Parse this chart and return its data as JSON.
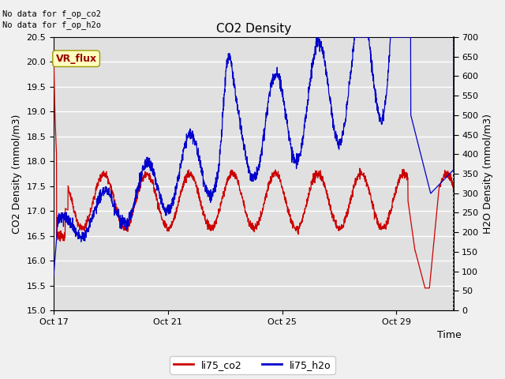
{
  "title": "CO2 Density",
  "xlabel": "Time",
  "ylabel_left": "CO2 Density (mmol/m3)",
  "ylabel_right": "H2O Density (mmol/m3)",
  "ylim_left": [
    15.0,
    20.5
  ],
  "ylim_right": [
    0,
    700
  ],
  "yticks_left": [
    15.0,
    15.5,
    16.0,
    16.5,
    17.0,
    17.5,
    18.0,
    18.5,
    19.0,
    19.5,
    20.0,
    20.5
  ],
  "yticks_right": [
    0,
    50,
    100,
    150,
    200,
    250,
    300,
    350,
    400,
    450,
    500,
    550,
    600,
    650,
    700
  ],
  "xtick_labels": [
    "Oct 17",
    "Oct 21",
    "Oct 25",
    "Oct 29"
  ],
  "xtick_positions": [
    0,
    4,
    8,
    12
  ],
  "xlim": [
    0,
    14
  ],
  "nodata_text1": "No data for f_op_co2",
  "nodata_text2": "No data for f_op_h2o",
  "vr_flux_label": "VR_flux",
  "legend_labels": [
    "li75_co2",
    "li75_h2o"
  ],
  "co2_color": "#cc0000",
  "h2o_color": "#0000cc",
  "plot_bg_color": "#e0e0e0",
  "fig_bg_color": "#f0f0f0",
  "vr_flux_bg": "#ffffc0",
  "vr_flux_text_color": "#990000",
  "grid_color": "#ffffff",
  "linewidth": 0.9,
  "title_fontsize": 11,
  "label_fontsize": 9,
  "tick_fontsize": 8,
  "legend_fontsize": 9
}
